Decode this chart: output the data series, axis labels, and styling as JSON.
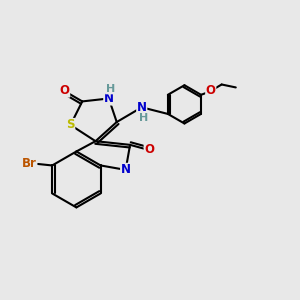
{
  "bg_color": "#e8e8e8",
  "colors": {
    "N": "#0000cc",
    "O": "#cc0000",
    "S": "#bbbb00",
    "Br": "#bb5500",
    "H": "#669999",
    "bond": "#000000"
  },
  "lw": 1.5,
  "fs": 8.5,
  "fig_size": [
    3.0,
    3.0
  ],
  "dpi": 100
}
